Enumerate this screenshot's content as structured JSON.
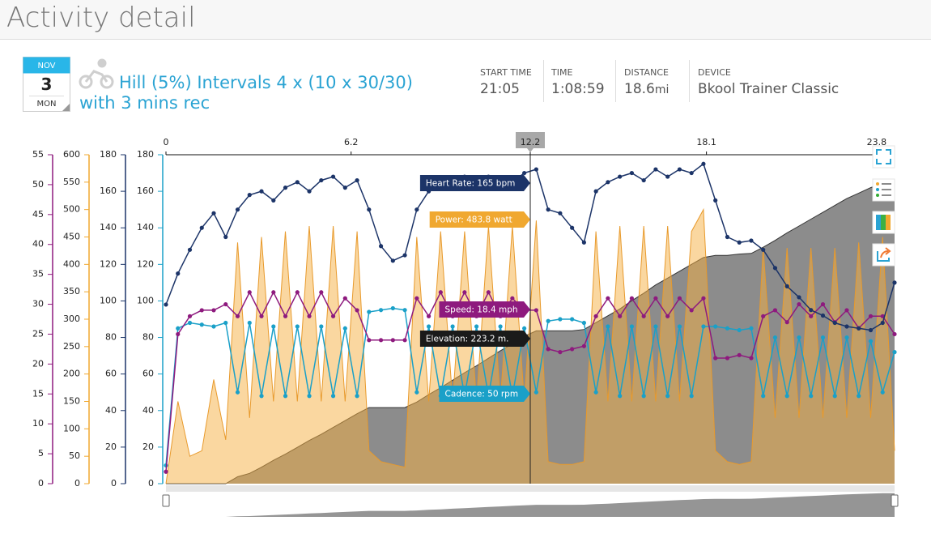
{
  "header": {
    "title": "Activity detail"
  },
  "activity": {
    "month": "NOV",
    "day": "3",
    "weekday": "MON",
    "title_lines": [
      "Hill (5%) Intervals 4 x (10 x 30/30)",
      "with 3 mins rec"
    ]
  },
  "stats": [
    {
      "label": "START TIME",
      "value": "21:05"
    },
    {
      "label": "TIME",
      "value": "1:08:59"
    },
    {
      "label": "DISTANCE",
      "value": "18.6",
      "unit": "mi"
    },
    {
      "label": "DEVICE",
      "value": "Bkool Trainer Classic"
    }
  ],
  "chart_data": {
    "type": "line",
    "x": [
      0,
      0.4,
      0.8,
      1.2,
      1.6,
      2.0,
      2.4,
      2.8,
      3.2,
      3.6,
      4.0,
      4.4,
      4.8,
      5.2,
      5.6,
      6.0,
      6.4,
      6.8,
      7.2,
      7.6,
      8.0,
      8.4,
      8.8,
      9.2,
      9.6,
      10.0,
      10.4,
      10.8,
      11.2,
      11.6,
      12.0,
      12.4,
      12.8,
      13.2,
      13.6,
      14.0,
      14.4,
      14.8,
      15.2,
      15.6,
      16.0,
      16.4,
      16.8,
      17.2,
      17.6,
      18.0,
      18.4,
      18.8,
      19.2,
      19.6,
      20.0,
      20.4,
      20.8,
      21.2,
      21.6,
      22.0,
      22.4,
      22.8,
      23.2,
      23.6,
      24.0,
      24.4
    ],
    "xlim": [
      0,
      24.4
    ],
    "xticks": [
      0,
      6.2,
      12.2,
      18.1,
      23.8
    ],
    "axes": [
      {
        "color": "#8e1a7e",
        "ylim": [
          0,
          55
        ],
        "yticks": [
          0,
          5,
          10,
          15,
          20,
          25,
          30,
          35,
          40,
          45,
          50,
          55
        ]
      },
      {
        "color": "#f0a830",
        "ylim": [
          0,
          600
        ],
        "yticks": [
          0,
          50,
          100,
          150,
          200,
          250,
          300,
          350,
          400,
          450,
          500,
          550,
          600
        ]
      },
      {
        "color": "#1c3468",
        "ylim": [
          0,
          180
        ],
        "yticks": [
          0,
          20,
          40,
          60,
          80,
          100,
          120,
          140,
          160,
          180
        ]
      },
      {
        "color": "#1aa0c8",
        "ylim": [
          0,
          180
        ],
        "yticks": [
          0,
          20,
          40,
          60,
          80,
          100,
          120,
          140,
          160,
          180
        ]
      }
    ],
    "series": [
      {
        "style": "area",
        "color": "#333333",
        "fill": "#8c8c8c",
        "fill_opacity": 1,
        "ylim": [
          0,
          480
        ],
        "values": [
          0,
          0,
          0,
          0,
          0,
          0,
          10,
          15,
          24,
          34,
          43,
          53,
          63,
          72,
          82,
          92,
          102,
          111,
          111,
          111,
          111,
          119,
          130,
          140,
          151,
          162,
          172,
          183,
          194,
          204,
          215,
          223,
          223,
          223,
          223,
          225,
          235,
          245,
          255,
          267,
          278,
          290,
          300,
          310,
          320,
          330,
          333,
          333,
          335,
          336,
          345,
          355,
          366,
          376,
          386,
          396,
          406,
          416,
          424,
          432,
          438,
          440
        ]
      },
      {
        "style": "area",
        "color": "#e89a2c",
        "fill": "#f5b041",
        "fill_opacity": 0.5,
        "axis": 1,
        "values": [
          0,
          150,
          50,
          60,
          190,
          80,
          440,
          120,
          450,
          150,
          460,
          150,
          470,
          150,
          470,
          150,
          460,
          60,
          40,
          35,
          30,
          450,
          150,
          460,
          150,
          460,
          150,
          470,
          150,
          470,
          150,
          480,
          40,
          35,
          35,
          40,
          460,
          150,
          470,
          150,
          470,
          150,
          470,
          150,
          460,
          500,
          60,
          40,
          35,
          40,
          430,
          120,
          430,
          120,
          430,
          120,
          430,
          120,
          440,
          120,
          450,
          60
        ]
      },
      {
        "style": "dots",
        "color": "#1aa0c8",
        "axis": 3,
        "values": [
          10,
          85,
          88,
          87,
          86,
          88,
          50,
          88,
          48,
          86,
          48,
          86,
          48,
          86,
          48,
          85,
          48,
          94,
          95,
          96,
          95,
          50,
          86,
          48,
          86,
          48,
          86,
          48,
          86,
          48,
          85,
          50,
          89,
          90,
          90,
          88,
          50,
          86,
          48,
          86,
          48,
          86,
          48,
          86,
          48,
          86,
          86,
          85,
          84,
          85,
          48,
          80,
          48,
          80,
          48,
          80,
          48,
          80,
          48,
          78,
          50,
          72
        ]
      },
      {
        "style": "dots",
        "color": "#8e1a7e",
        "axis": 0,
        "values": [
          2,
          25,
          28,
          29,
          29,
          30,
          28,
          32,
          28,
          32,
          28,
          32,
          28,
          32,
          28,
          31,
          29,
          24,
          24,
          24,
          24,
          31,
          28,
          32,
          28,
          32,
          28,
          32,
          28,
          31,
          29,
          29,
          22.5,
          22,
          22.5,
          23,
          28,
          31,
          28,
          31,
          28,
          31,
          28,
          31,
          29,
          31,
          21,
          21,
          21.5,
          21,
          28,
          29,
          27,
          30,
          28,
          30,
          27,
          29,
          26,
          28,
          28,
          25
        ]
      },
      {
        "style": "dots",
        "color": "#1c3468",
        "axis": 2,
        "values": [
          98,
          115,
          128,
          140,
          148,
          135,
          150,
          158,
          160,
          155,
          162,
          165,
          160,
          166,
          168,
          162,
          166,
          150,
          130,
          122,
          125,
          150,
          160,
          163,
          165,
          168,
          164,
          168,
          166,
          165,
          170,
          172,
          150,
          148,
          140,
          132,
          160,
          165,
          168,
          170,
          166,
          172,
          168,
          172,
          170,
          175,
          155,
          135,
          132,
          133,
          128,
          118,
          108,
          102,
          95,
          92,
          88,
          86,
          85,
          84,
          88,
          110
        ]
      }
    ],
    "hover": {
      "x": 12.2,
      "tooltips": [
        {
          "text": "Heart Rate: 165 bpm",
          "color": "#1c3468"
        },
        {
          "text": "Power: 483.8 watt",
          "color": "#f0a830"
        },
        {
          "text": "Speed: 18.4 mph",
          "color": "#8e1a7e"
        },
        {
          "text": "Elevation: 223.2 m.",
          "color": "#1a1a1a"
        },
        {
          "text": "Cadence: 50 rpm",
          "color": "#1aa0c8"
        }
      ]
    }
  }
}
